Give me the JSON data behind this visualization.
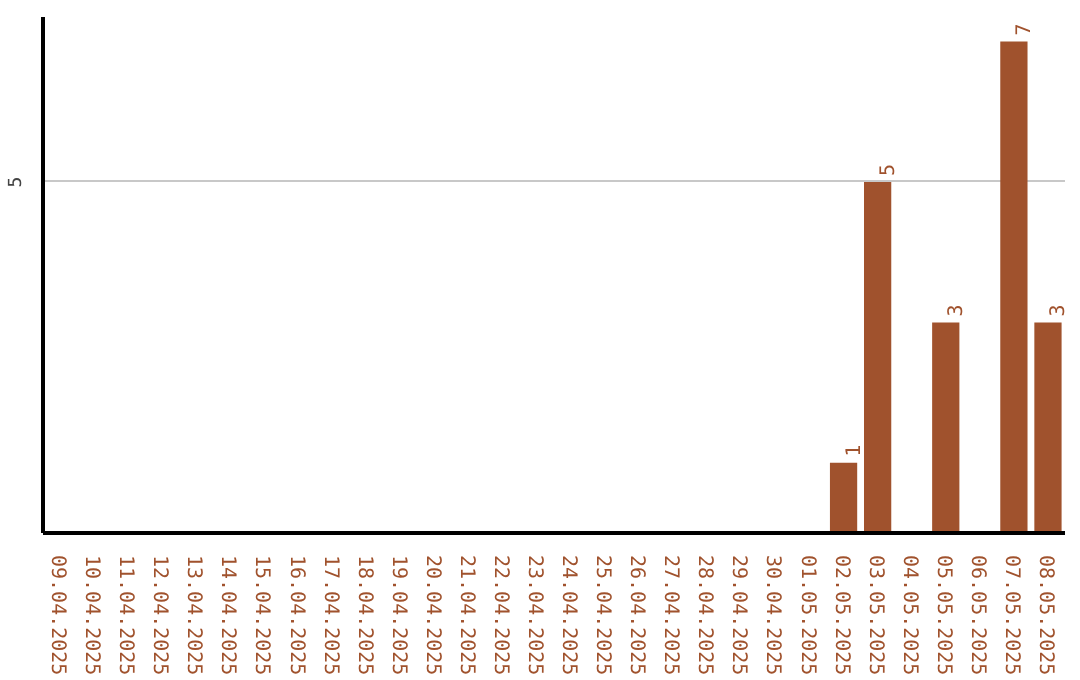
{
  "chart_data": {
    "type": "bar",
    "categories": [
      "09.04.2025",
      "10.04.2025",
      "11.04.2025",
      "12.04.2025",
      "13.04.2025",
      "14.04.2025",
      "15.04.2025",
      "16.04.2025",
      "17.04.2025",
      "18.04.2025",
      "19.04.2025",
      "20.04.2025",
      "21.04.2025",
      "22.04.2025",
      "23.04.2025",
      "24.04.2025",
      "25.04.2025",
      "26.04.2025",
      "27.04.2025",
      "28.04.2025",
      "29.04.2025",
      "30.04.2025",
      "01.05.2025",
      "02.05.2025",
      "03.05.2025",
      "04.05.2025",
      "05.05.2025",
      "06.05.2025",
      "07.05.2025",
      "08.05.2025"
    ],
    "values": [
      null,
      null,
      null,
      null,
      null,
      null,
      null,
      null,
      null,
      null,
      null,
      null,
      null,
      null,
      null,
      null,
      null,
      null,
      null,
      null,
      null,
      null,
      null,
      1,
      5,
      null,
      3,
      null,
      7,
      3
    ],
    "data_labels": true,
    "color": "#a0522d",
    "ylim": [
      0,
      7.35
    ],
    "yticks": [
      5
    ],
    "grid": "y"
  }
}
